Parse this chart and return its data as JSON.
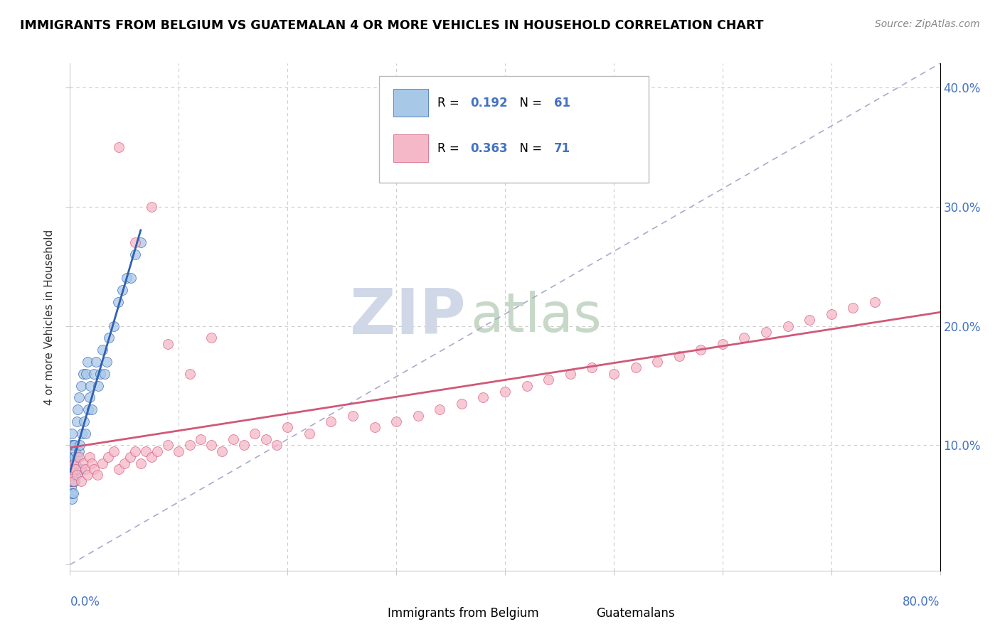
{
  "title": "IMMIGRANTS FROM BELGIUM VS GUATEMALAN 4 OR MORE VEHICLES IN HOUSEHOLD CORRELATION CHART",
  "source": "Source: ZipAtlas.com",
  "ylabel": "4 or more Vehicles in Household",
  "xlim": [
    0.0,
    0.8
  ],
  "ylim": [
    -0.005,
    0.42
  ],
  "ytick_values": [
    0.0,
    0.1,
    0.2,
    0.3,
    0.4
  ],
  "scatter1_color": "#a8c8e8",
  "scatter2_color": "#f5b8c8",
  "line1_color": "#3060b0",
  "line2_color": "#d05878",
  "diag_color": "#aaaacc",
  "watermark_main": "#d0d8e8",
  "watermark_sub": "#c8d8c8",
  "r1": 0.192,
  "n1": 61,
  "r2": 0.363,
  "n2": 71,
  "blue_x": [
    0.001,
    0.001,
    0.001,
    0.001,
    0.001,
    0.002,
    0.002,
    0.002,
    0.002,
    0.002,
    0.002,
    0.002,
    0.002,
    0.002,
    0.003,
    0.003,
    0.003,
    0.003,
    0.003,
    0.003,
    0.004,
    0.004,
    0.004,
    0.004,
    0.005,
    0.005,
    0.005,
    0.006,
    0.006,
    0.007,
    0.007,
    0.008,
    0.008,
    0.009,
    0.01,
    0.01,
    0.011,
    0.012,
    0.013,
    0.014,
    0.015,
    0.016,
    0.017,
    0.018,
    0.019,
    0.02,
    0.022,
    0.024,
    0.026,
    0.028,
    0.03,
    0.032,
    0.034,
    0.036,
    0.04,
    0.044,
    0.048,
    0.052,
    0.056,
    0.06,
    0.065
  ],
  "blue_y": [
    0.065,
    0.07,
    0.075,
    0.08,
    0.085,
    0.055,
    0.06,
    0.07,
    0.075,
    0.08,
    0.085,
    0.09,
    0.1,
    0.11,
    0.06,
    0.07,
    0.075,
    0.08,
    0.09,
    0.1,
    0.07,
    0.08,
    0.09,
    0.1,
    0.075,
    0.085,
    0.095,
    0.08,
    0.12,
    0.09,
    0.13,
    0.095,
    0.14,
    0.1,
    0.08,
    0.15,
    0.11,
    0.16,
    0.12,
    0.11,
    0.16,
    0.17,
    0.13,
    0.14,
    0.15,
    0.13,
    0.16,
    0.17,
    0.15,
    0.16,
    0.18,
    0.16,
    0.17,
    0.19,
    0.2,
    0.22,
    0.23,
    0.24,
    0.24,
    0.26,
    0.27
  ],
  "pink_x": [
    0.001,
    0.002,
    0.003,
    0.004,
    0.005,
    0.006,
    0.008,
    0.01,
    0.012,
    0.014,
    0.016,
    0.018,
    0.02,
    0.022,
    0.025,
    0.03,
    0.035,
    0.04,
    0.045,
    0.05,
    0.055,
    0.06,
    0.065,
    0.07,
    0.075,
    0.08,
    0.09,
    0.1,
    0.11,
    0.12,
    0.13,
    0.14,
    0.15,
    0.16,
    0.17,
    0.18,
    0.19,
    0.2,
    0.22,
    0.24,
    0.26,
    0.28,
    0.3,
    0.32,
    0.34,
    0.36,
    0.38,
    0.4,
    0.42,
    0.44,
    0.46,
    0.48,
    0.5,
    0.52,
    0.54,
    0.56,
    0.58,
    0.6,
    0.62,
    0.64,
    0.66,
    0.68,
    0.7,
    0.72,
    0.74,
    0.045,
    0.06,
    0.075,
    0.09,
    0.11,
    0.13
  ],
  "pink_y": [
    0.075,
    0.08,
    0.07,
    0.085,
    0.08,
    0.075,
    0.09,
    0.07,
    0.085,
    0.08,
    0.075,
    0.09,
    0.085,
    0.08,
    0.075,
    0.085,
    0.09,
    0.095,
    0.08,
    0.085,
    0.09,
    0.095,
    0.085,
    0.095,
    0.09,
    0.095,
    0.1,
    0.095,
    0.1,
    0.105,
    0.1,
    0.095,
    0.105,
    0.1,
    0.11,
    0.105,
    0.1,
    0.115,
    0.11,
    0.12,
    0.125,
    0.115,
    0.12,
    0.125,
    0.13,
    0.135,
    0.14,
    0.145,
    0.15,
    0.155,
    0.16,
    0.165,
    0.16,
    0.165,
    0.17,
    0.175,
    0.18,
    0.185,
    0.19,
    0.195,
    0.2,
    0.205,
    0.21,
    0.215,
    0.22,
    0.35,
    0.27,
    0.3,
    0.185,
    0.16,
    0.19
  ]
}
